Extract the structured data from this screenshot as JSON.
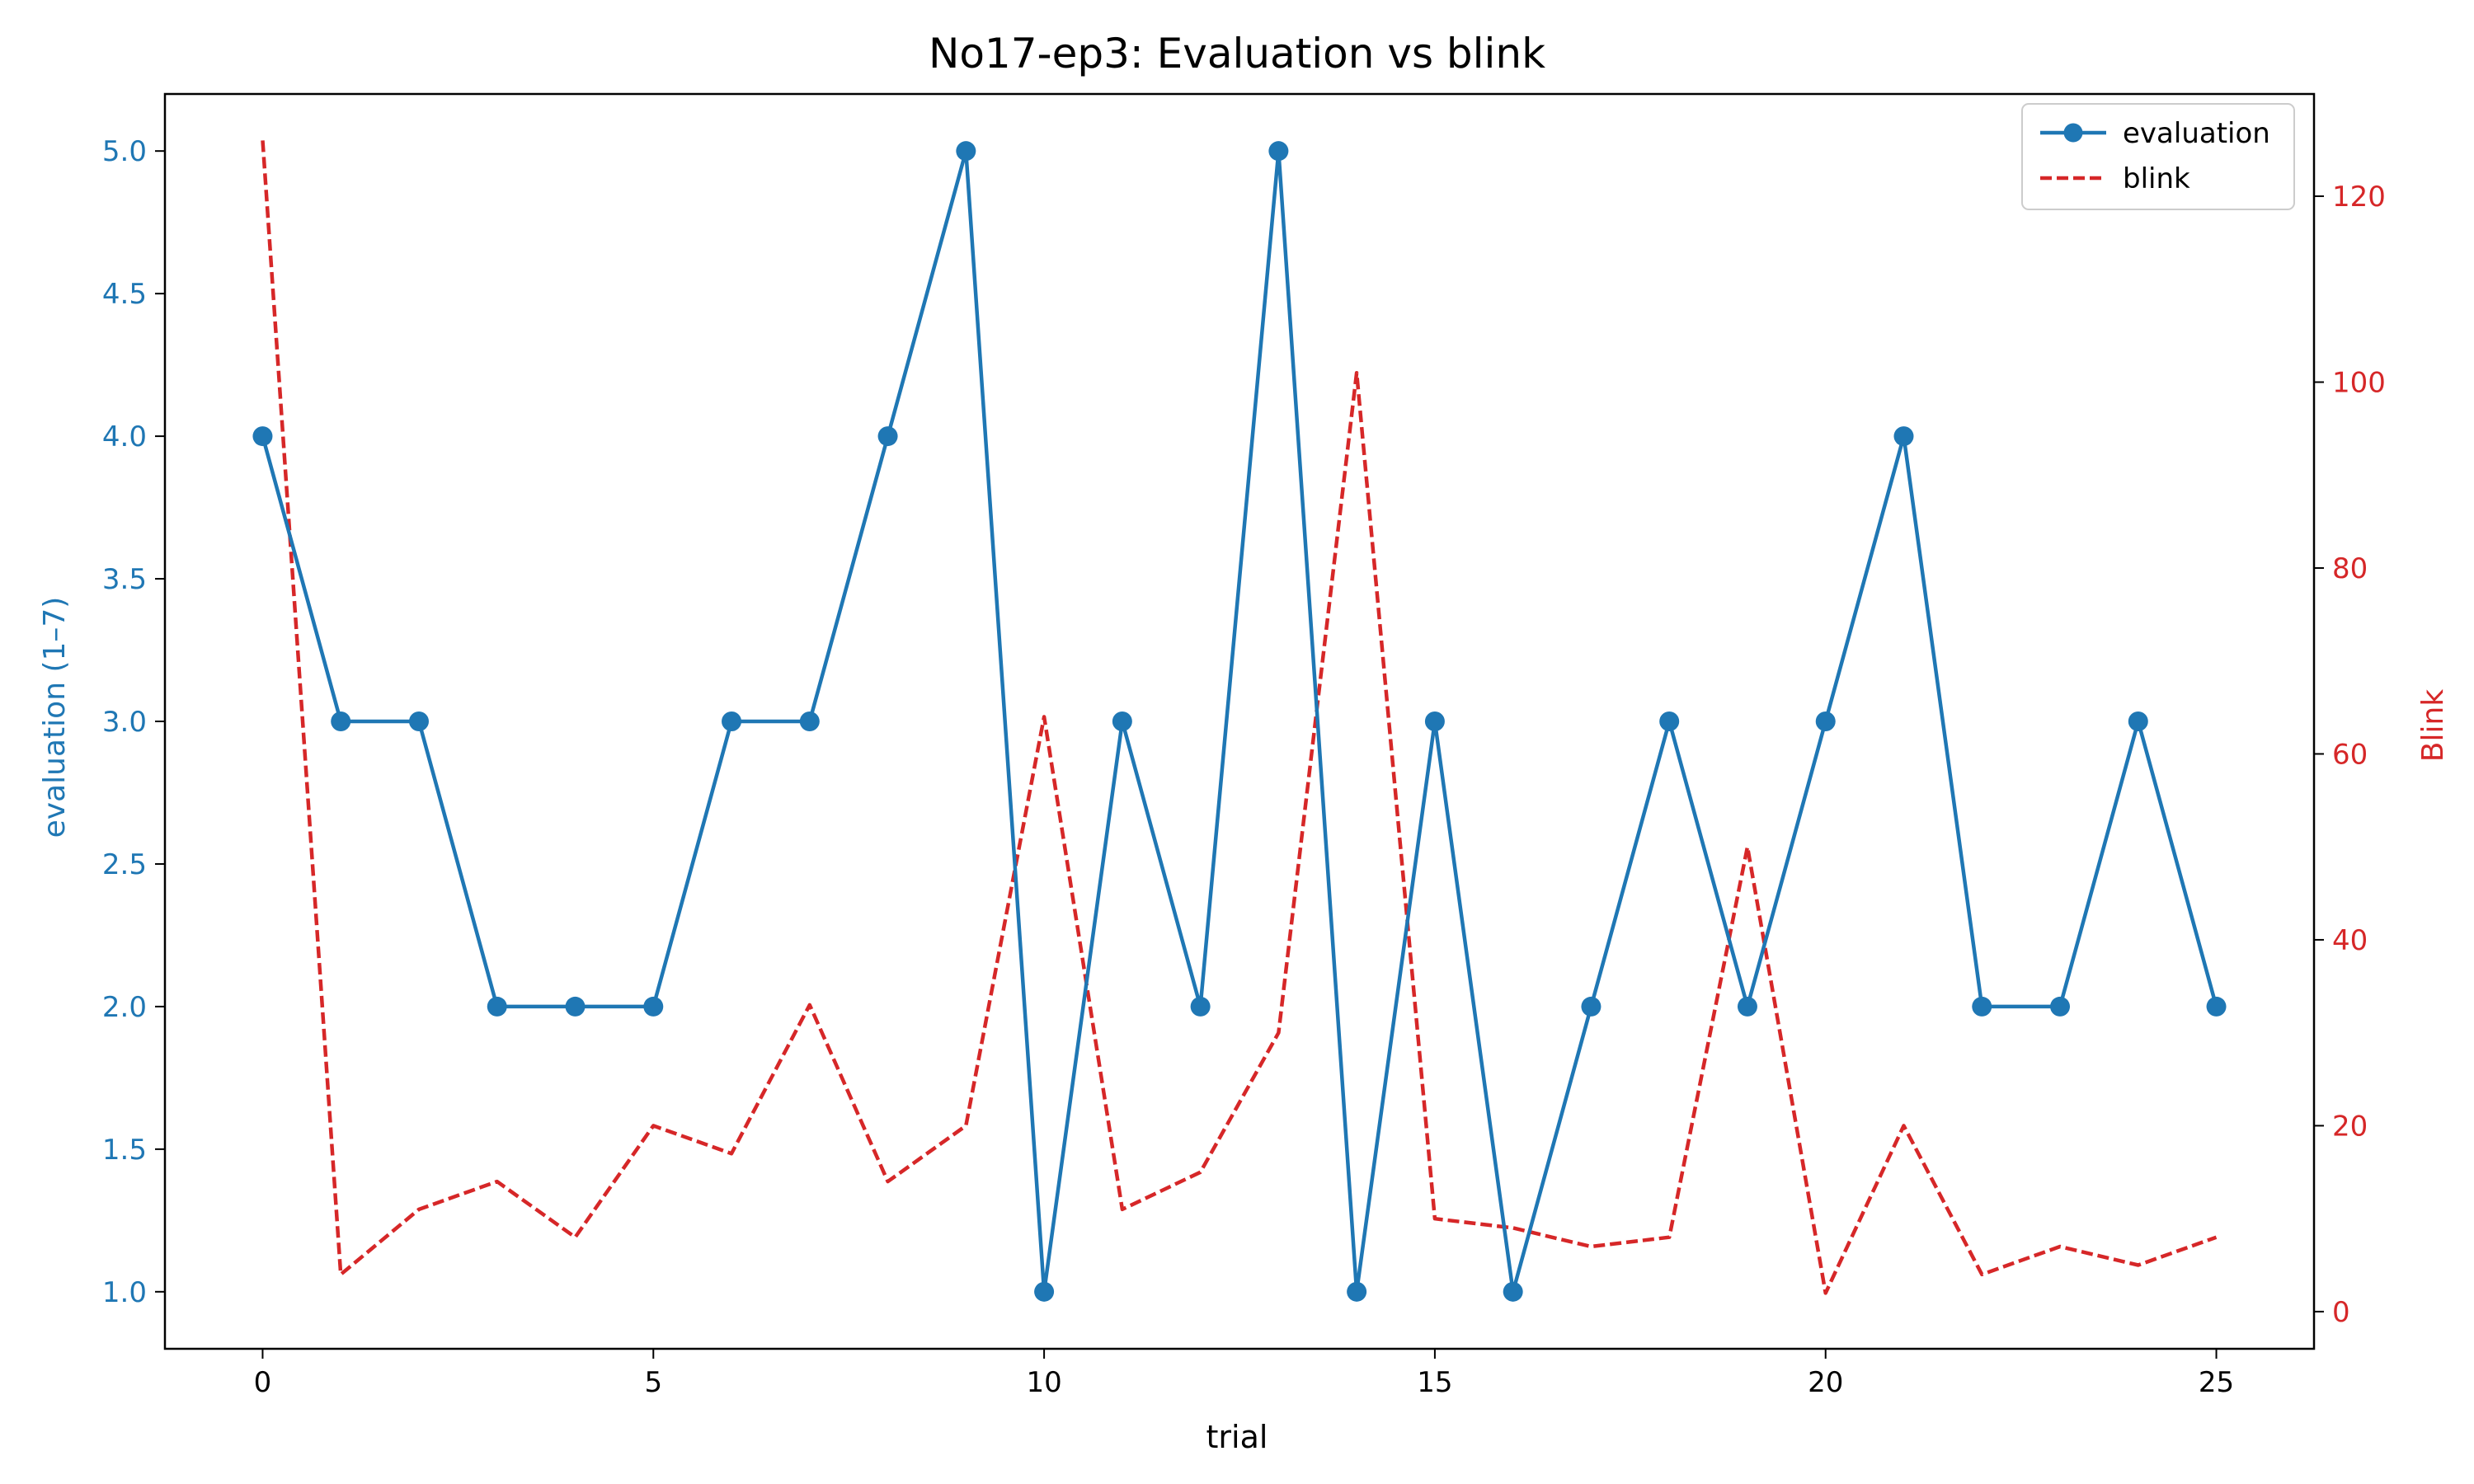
{
  "chart_data": {
    "type": "line",
    "title": "No17-ep3: Evaluation vs blink",
    "xlabel": "trial",
    "ylabel_left": "evaluation (1–7)",
    "ylabel_right": "Blink",
    "xlim": [
      -1.25,
      26.25
    ],
    "ylim_left": [
      0.8,
      5.2
    ],
    "ylim_right": [
      -4,
      131
    ],
    "x_ticks": [
      0,
      5,
      10,
      15,
      20,
      25
    ],
    "y_left_ticks": [
      "1.0",
      "1.5",
      "2.0",
      "2.5",
      "3.0",
      "3.5",
      "4.0",
      "4.5",
      "5.0"
    ],
    "y_right_ticks": [
      0,
      20,
      40,
      60,
      80,
      100,
      120
    ],
    "legend_position": "top-right",
    "x": [
      0,
      1,
      2,
      3,
      4,
      5,
      6,
      7,
      8,
      9,
      10,
      11,
      12,
      13,
      14,
      15,
      16,
      17,
      18,
      19,
      20,
      21,
      22,
      23,
      24,
      25
    ],
    "series": [
      {
        "name": "evaluation",
        "axis": "left",
        "style": "solid-marker",
        "color": "#1f77b4",
        "values": [
          4,
          3,
          3,
          2,
          2,
          2,
          3,
          3,
          4,
          5,
          1,
          3,
          2,
          5,
          1,
          3,
          1,
          2,
          3,
          2,
          3,
          4,
          2,
          2,
          3,
          2
        ]
      },
      {
        "name": "blink",
        "axis": "right",
        "style": "dashed",
        "color": "#d62728",
        "values": [
          126,
          4,
          11,
          14,
          8,
          20,
          17,
          33,
          14,
          20,
          64,
          11,
          15,
          30,
          101,
          10,
          9,
          7,
          8,
          50,
          2,
          20,
          4,
          7,
          5,
          8
        ]
      }
    ]
  }
}
